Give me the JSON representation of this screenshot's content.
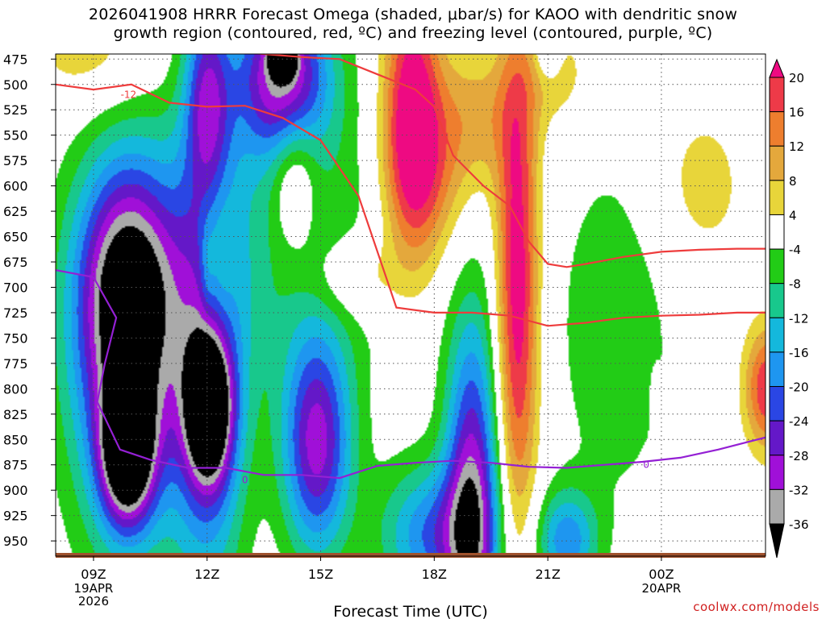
{
  "title_line1": "2026041908 HRRR Forecast Omega (shaded, μbar/s) for KAOO with dendritic snow",
  "title_line2": "growth region (contoured, red, ºC) and freezing level (contoured, purple, ºC)",
  "credit": "coolwx.com/models",
  "chart_data": {
    "type": "time-height cross-section (filled contour)",
    "xlabel": "Forecast Time (UTC)",
    "ylabel": "",
    "x_hours": [
      8,
      26.75
    ],
    "x_ticks": [
      {
        "hour": 9,
        "label": "09Z",
        "sub": [
          "19APR",
          "2026"
        ]
      },
      {
        "hour": 12,
        "label": "12Z",
        "sub": []
      },
      {
        "hour": 15,
        "label": "15Z",
        "sub": []
      },
      {
        "hour": 18,
        "label": "18Z",
        "sub": []
      },
      {
        "hour": 21,
        "label": "21Z",
        "sub": []
      },
      {
        "hour": 24,
        "label": "00Z",
        "sub": [
          "20APR"
        ]
      }
    ],
    "y_levels": [
      475,
      500,
      525,
      550,
      575,
      600,
      625,
      650,
      675,
      700,
      725,
      750,
      775,
      800,
      825,
      850,
      875,
      900,
      925,
      950
    ],
    "y_range_hpa": [
      965,
      470
    ],
    "colorbar": {
      "labels": [
        "20",
        "16",
        "12",
        "8",
        "4",
        "-4",
        "-8",
        "-12",
        "-16",
        "-20",
        "-24",
        "-28",
        "-32",
        "-36"
      ],
      "bins": [
        {
          "lo": 20,
          "hi": null,
          "color": "#ee0a82"
        },
        {
          "lo": 16,
          "hi": 20,
          "color": "#ee3a48"
        },
        {
          "lo": 12,
          "hi": 16,
          "color": "#ee7e2e"
        },
        {
          "lo": 8,
          "hi": 12,
          "color": "#e4a83c"
        },
        {
          "lo": 4,
          "hi": 8,
          "color": "#e8d53a"
        },
        {
          "lo": -4,
          "hi": 4,
          "color": "#ffffff"
        },
        {
          "lo": -8,
          "hi": -4,
          "color": "#22cc16"
        },
        {
          "lo": -12,
          "hi": -8,
          "color": "#18c88c"
        },
        {
          "lo": -16,
          "hi": -12,
          "color": "#14b8dc"
        },
        {
          "lo": -20,
          "hi": -16,
          "color": "#1e96f0"
        },
        {
          "lo": -24,
          "hi": -20,
          "color": "#2a46e4"
        },
        {
          "lo": -28,
          "hi": -24,
          "color": "#6418c8"
        },
        {
          "lo": -32,
          "hi": -28,
          "color": "#a010d8"
        },
        {
          "lo": -36,
          "hi": -32,
          "color": "#aaaaaa"
        },
        {
          "lo": null,
          "hi": -36,
          "color": "#000000"
        }
      ]
    },
    "features": [
      {
        "name": "broad-weak-ascent",
        "t": 14.0,
        "p": 640,
        "rt": 3.6,
        "rp": 170,
        "omega": -8
      },
      {
        "name": "weak-ascent-east",
        "t": 22.8,
        "p": 740,
        "rt": 1.7,
        "rp": 190,
        "omega": -7
      },
      {
        "name": "ascent-core-09z",
        "t": 9.9,
        "p": 862,
        "rt": 0.7,
        "rp": 70,
        "omega": -38
      },
      {
        "name": "ascent-mid-09z",
        "t": 9.9,
        "p": 780,
        "rt": 1.6,
        "rp": 190,
        "omega": -22
      },
      {
        "name": "ascent-column-09z",
        "t": 9.9,
        "p": 700,
        "rt": 1.3,
        "rp": 120,
        "omega": -27
      },
      {
        "name": "ascent-core-12z",
        "t": 12.05,
        "p": 822,
        "rt": 0.6,
        "rp": 70,
        "omega": -34
      },
      {
        "name": "ascent-column-12z",
        "t": 12.05,
        "p": 800,
        "rt": 1.0,
        "rp": 220,
        "omega": -21
      },
      {
        "name": "ascent-1430z",
        "t": 14.9,
        "p": 855,
        "rt": 0.9,
        "rp": 110,
        "omega": -29
      },
      {
        "name": "ascent-upper-14z",
        "t": 14.0,
        "p": 490,
        "rt": 1.2,
        "rp": 80,
        "omega": -32
      },
      {
        "name": "ascent-upper-core",
        "t": 14.0,
        "p": 473,
        "rt": 0.3,
        "rp": 18,
        "omega": -36
      },
      {
        "name": "ascent-upper-12z",
        "t": 12.0,
        "p": 510,
        "rt": 0.6,
        "rp": 100,
        "omega": -22
      },
      {
        "name": "ascent-1830z",
        "t": 19.0,
        "p": 910,
        "rt": 0.7,
        "rp": 180,
        "omega": -30
      },
      {
        "name": "ascent-19z-low",
        "t": 18.0,
        "p": 945,
        "rt": 1.4,
        "rp": 70,
        "omega": -20
      },
      {
        "name": "ascent-21z-low",
        "t": 21.5,
        "p": 950,
        "rt": 0.8,
        "rp": 50,
        "omega": -18
      },
      {
        "name": "subsidence-column-20z",
        "t": 20.2,
        "p": 700,
        "rt": 0.55,
        "rp": 240,
        "omega": 24
      },
      {
        "name": "subsidence-upper-17z",
        "t": 17.4,
        "p": 520,
        "rt": 0.75,
        "rp": 140,
        "omega": 23
      },
      {
        "name": "subsidence-mid-1730z",
        "t": 17.8,
        "p": 590,
        "rt": 1.2,
        "rp": 90,
        "omega": 12
      },
      {
        "name": "subsidence-upper-19z",
        "t": 19.2,
        "p": 530,
        "rt": 1.2,
        "rp": 70,
        "omega": 9
      },
      {
        "name": "subsidence-upper-east",
        "t": 25.0,
        "p": 600,
        "rt": 1.4,
        "rp": 90,
        "omega": 6
      },
      {
        "name": "subsidence-right-edge",
        "t": 26.8,
        "p": 800,
        "rt": 0.6,
        "rp": 60,
        "omega": 20
      },
      {
        "name": "subsidence-12z-spot",
        "t": 12.0,
        "p": 680,
        "rt": 0.18,
        "rp": 50,
        "omega": 5
      },
      {
        "name": "subsidence-2330z-spot",
        "t": 23.85,
        "p": 810,
        "rt": 0.12,
        "rp": 25,
        "omega": 5
      },
      {
        "name": "neutral-12z",
        "t": 12.3,
        "p": 675,
        "rt": 0.45,
        "rp": 75,
        "omega": 10
      },
      {
        "name": "neutral-14z",
        "t": 14.3,
        "p": 590,
        "rt": 0.6,
        "rp": 70,
        "omega": 12
      },
      {
        "name": "neutral-15z",
        "t": 15.9,
        "p": 690,
        "rt": 1.2,
        "rp": 40,
        "omega": 8
      },
      {
        "name": "neutral-upper-west",
        "t": 9.0,
        "p": 470,
        "rt": 1.7,
        "rp": 60,
        "omega": 7
      },
      {
        "name": "neutral-upper-21z",
        "t": 21.2,
        "p": 490,
        "rt": 0.9,
        "rp": 50,
        "omega": 7
      },
      {
        "name": "ascent-upper-21z",
        "t": 21.0,
        "p": 465,
        "rt": 0.35,
        "rp": 30,
        "omega": -10
      }
    ],
    "dgz_contours": [
      {
        "label": "-12",
        "label_at": [
          9.5,
          510
        ],
        "points": [
          [
            8,
            500
          ],
          [
            9,
            505
          ],
          [
            10,
            500
          ],
          [
            11,
            518
          ],
          [
            12,
            522
          ],
          [
            13,
            521
          ],
          [
            14,
            533
          ],
          [
            15,
            555
          ],
          [
            16,
            610
          ],
          [
            17,
            720
          ],
          [
            18,
            725
          ],
          [
            19,
            725
          ],
          [
            20,
            728
          ],
          [
            21,
            738
          ],
          [
            22,
            735
          ],
          [
            23,
            730
          ],
          [
            24,
            728
          ],
          [
            25,
            727
          ],
          [
            26,
            725
          ],
          [
            26.75,
            725
          ]
        ]
      },
      {
        "label": "",
        "label_at": [],
        "points": [
          [
            12.8,
            468
          ],
          [
            13.5,
            470
          ],
          [
            14.5,
            473
          ],
          [
            15.5,
            475
          ],
          [
            16.5,
            490
          ],
          [
            17.5,
            505
          ],
          [
            18.0,
            522
          ],
          [
            18.5,
            570
          ],
          [
            19.3,
            600
          ],
          [
            20.0,
            620
          ],
          [
            20.5,
            655
          ],
          [
            21.0,
            677
          ],
          [
            21.5,
            680
          ],
          [
            22.0,
            677
          ],
          [
            23.0,
            670
          ],
          [
            24.0,
            665
          ],
          [
            25.0,
            663
          ],
          [
            26.0,
            662
          ],
          [
            26.75,
            662
          ]
        ]
      }
    ],
    "freezing_contours": [
      {
        "label": "0",
        "label_at": [
          13.0,
          890
        ],
        "points": [
          [
            8,
            683
          ],
          [
            9,
            690
          ],
          [
            9.6,
            730
          ],
          [
            9.3,
            775
          ],
          [
            9.1,
            813
          ],
          [
            9.7,
            860
          ],
          [
            10.5,
            870
          ],
          [
            11.5,
            878
          ],
          [
            12.5,
            878
          ],
          [
            13.5,
            885
          ],
          [
            14.5,
            885
          ],
          [
            15.5,
            888
          ],
          [
            16.5,
            876
          ],
          [
            17.5,
            873
          ],
          [
            18.5,
            871
          ],
          [
            19.5,
            873
          ],
          [
            20.5,
            877
          ],
          [
            21.5,
            878
          ],
          [
            22.5,
            875
          ],
          [
            23.5,
            872
          ],
          [
            24.5,
            868
          ],
          [
            25.5,
            860
          ],
          [
            26.75,
            848
          ]
        ]
      }
    ]
  }
}
